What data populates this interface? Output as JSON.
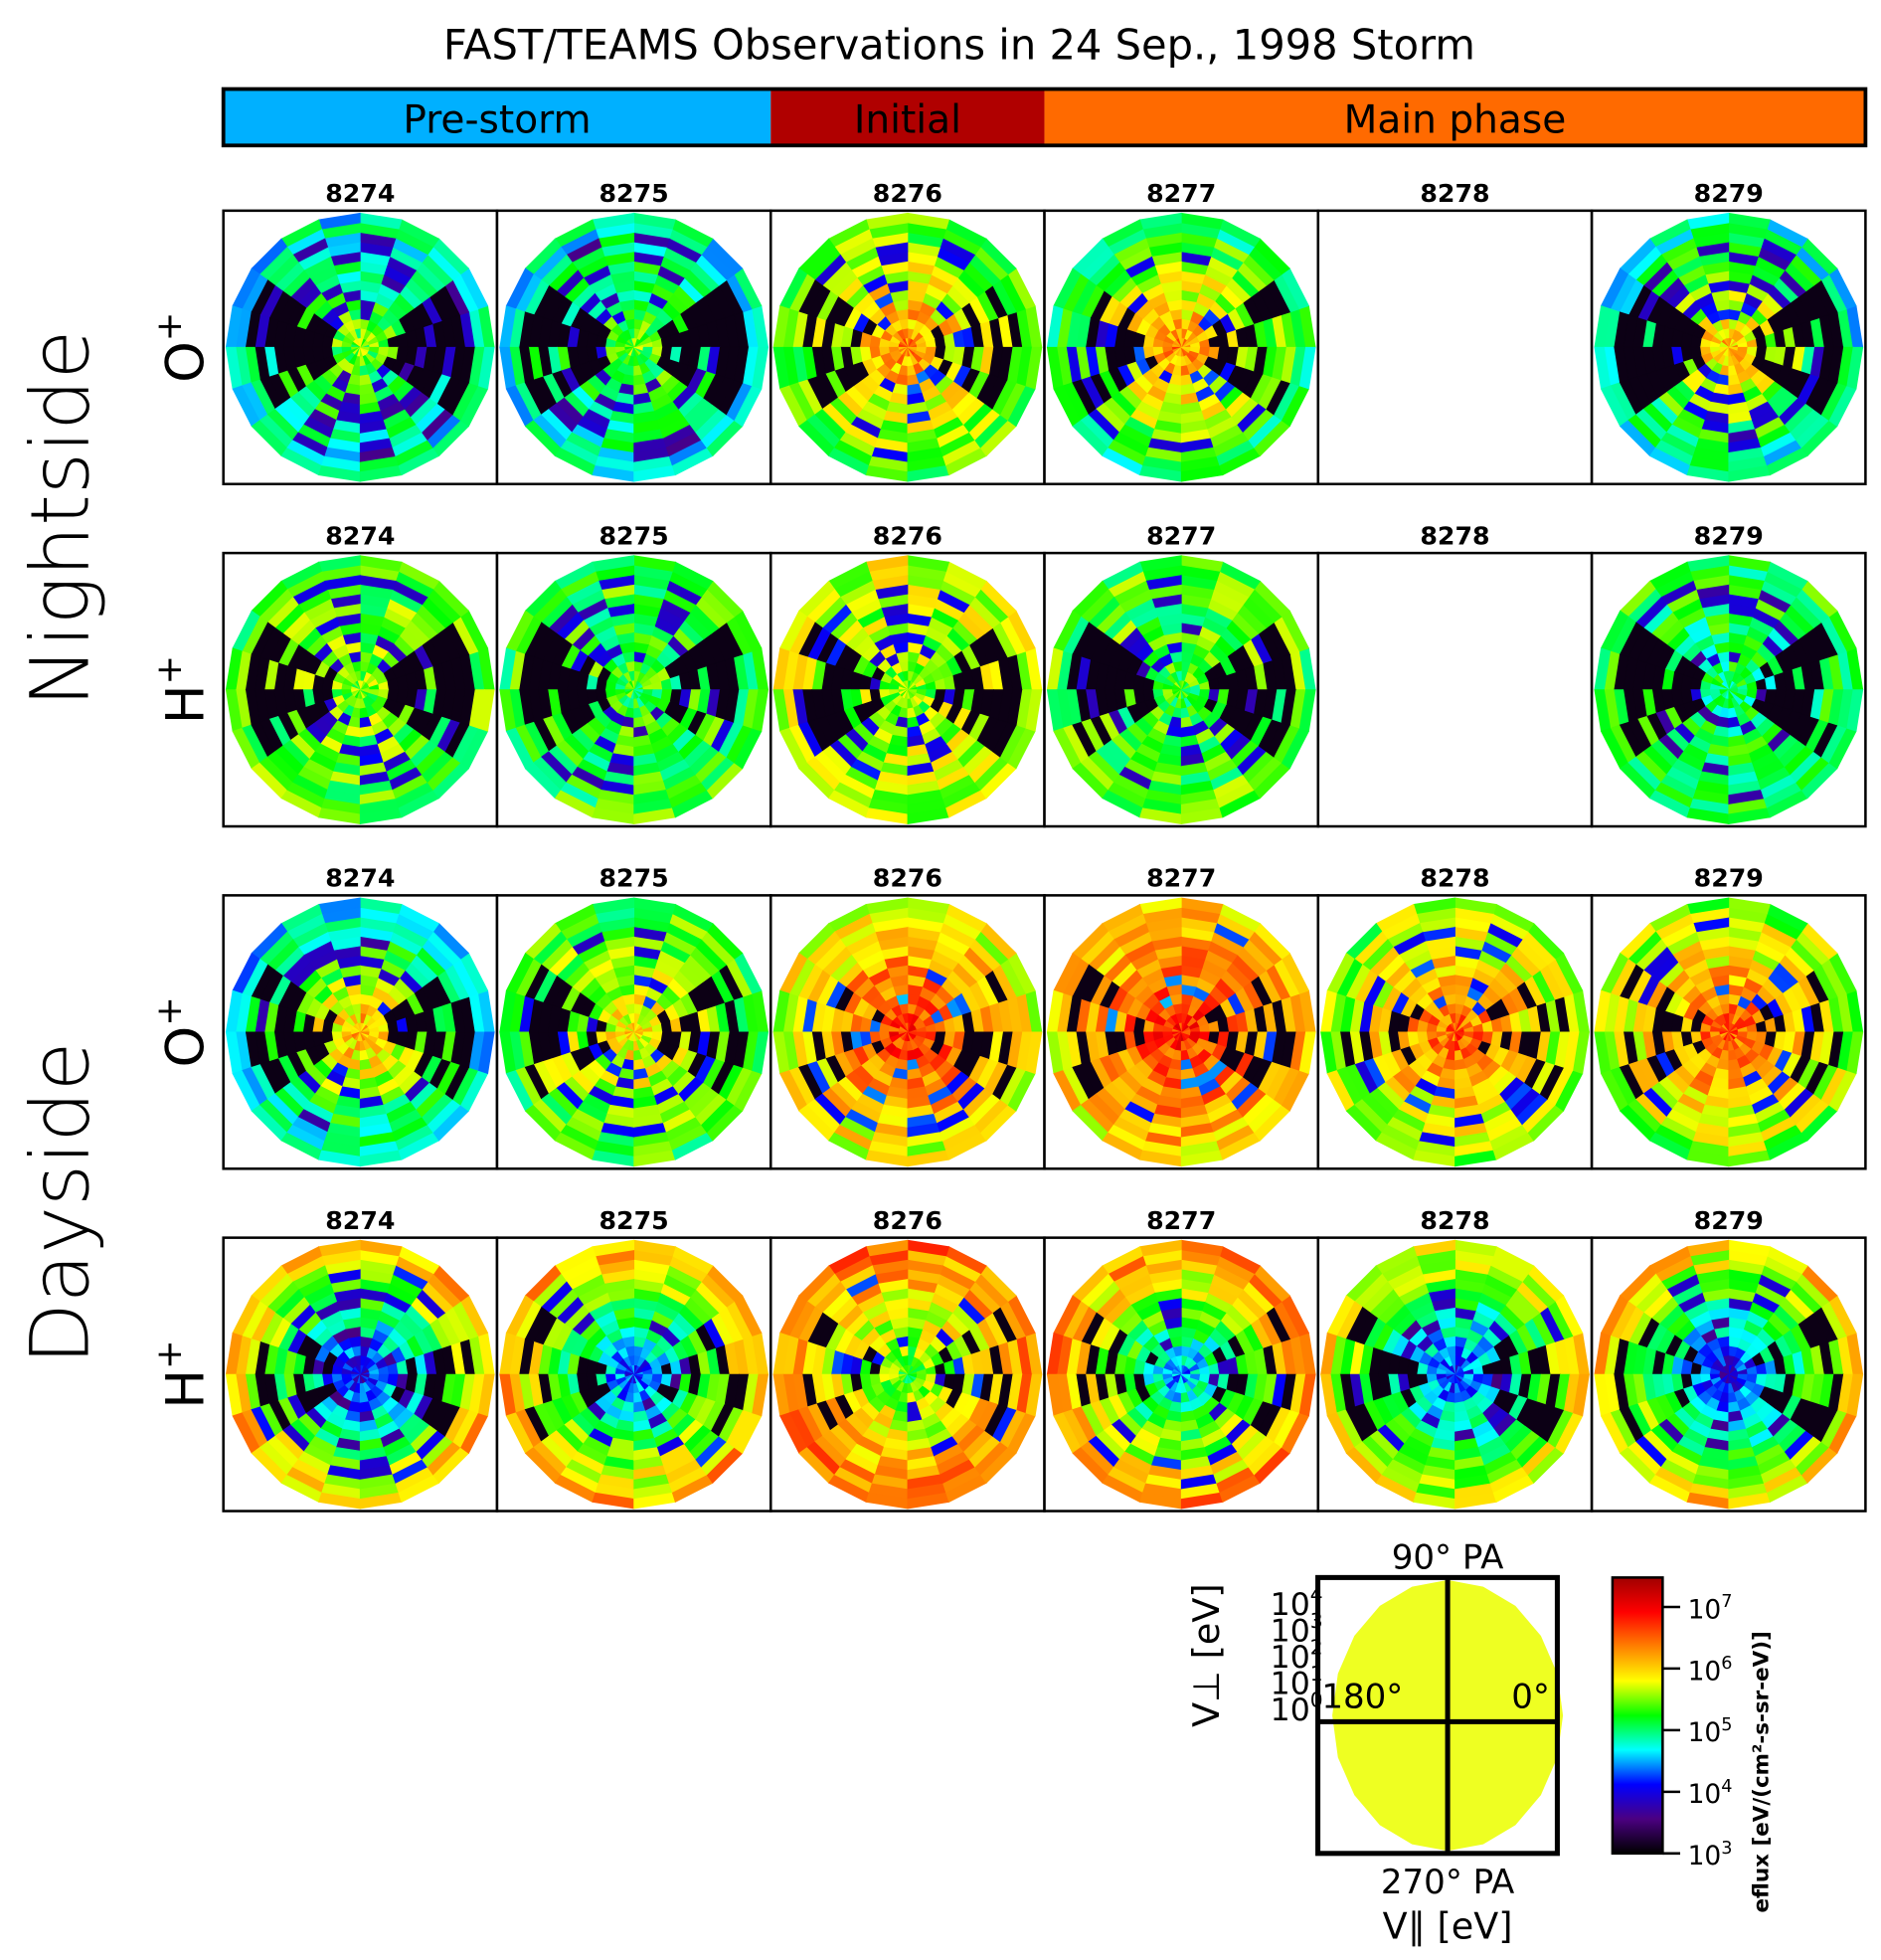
{
  "title": "FAST/TEAMS Observations in 24 Sep., 1998 Storm",
  "phases": [
    {
      "label": "Pre-storm",
      "color": "#00b0ff",
      "orbits": [
        "8274",
        "8275"
      ]
    },
    {
      "label": "Initial",
      "color": "#b00000",
      "orbits": [
        "8276"
      ]
    },
    {
      "label": "Main phase",
      "color": "#ff6a00",
      "orbits": [
        "8277",
        "8278",
        "8279"
      ]
    }
  ],
  "regions": [
    {
      "label": "Nightside",
      "rows": [
        0,
        1
      ]
    },
    {
      "label": "Dayside",
      "rows": [
        2,
        3
      ]
    }
  ],
  "chart_data": {
    "type": "heatmap",
    "subtype": "polar pitch-angle distributions",
    "title": "FAST/TEAMS Observations in 24 Sep., 1998 Storm",
    "orbits": [
      "8274",
      "8275",
      "8276",
      "8277",
      "8278",
      "8279"
    ],
    "rows": [
      {
        "region": "Nightside",
        "species": "O",
        "charge": "+",
        "orbits_with_data": [
          "8274",
          "8275",
          "8276",
          "8277",
          "8279"
        ],
        "orbits_without_data": [
          "8278"
        ]
      },
      {
        "region": "Nightside",
        "species": "H",
        "charge": "+",
        "orbits_with_data": [
          "8274",
          "8275",
          "8276",
          "8277",
          "8279"
        ],
        "orbits_without_data": [
          "8278"
        ]
      },
      {
        "region": "Dayside",
        "species": "O",
        "charge": "+",
        "orbits_with_data": [
          "8274",
          "8275",
          "8276",
          "8277",
          "8278",
          "8279"
        ],
        "orbits_without_data": []
      },
      {
        "region": "Dayside",
        "species": "H",
        "charge": "+",
        "orbits_with_data": [
          "8274",
          "8275",
          "8276",
          "8277",
          "8278",
          "8279"
        ],
        "orbits_without_data": []
      }
    ],
    "key": {
      "top_label": "90° PA",
      "bottom_label": "270° PA",
      "left_label": "180°",
      "right_label": "0°",
      "ylabel": "V⊥ [eV]",
      "xlabel": "V∥ [eV]",
      "radial_ticks_exponents": [
        0,
        1,
        2,
        3,
        4
      ],
      "radial_scale": "log",
      "radial_range": [
        1,
        10000
      ]
    },
    "colorbar": {
      "label": "eflux [eV/(cm²-s-sr-eV)]",
      "scale": "log",
      "range": [
        1000,
        30000000
      ],
      "tick_exponents": [
        3,
        4,
        5,
        6,
        7
      ],
      "colormap": [
        "#000000",
        "#4b0082",
        "#0000ff",
        "#00ffff",
        "#00ff00",
        "#ffff00",
        "#ff8000",
        "#ff0000",
        "#a00000"
      ]
    }
  }
}
